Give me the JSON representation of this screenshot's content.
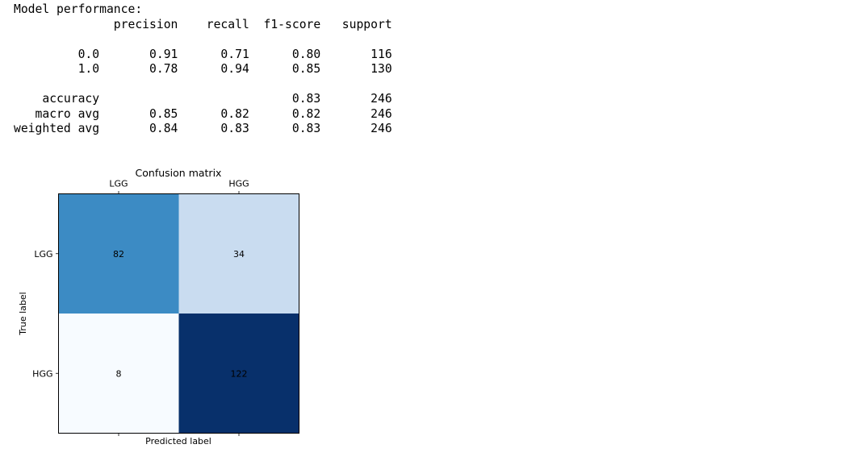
{
  "report": {
    "lines": [
      "Model performance:",
      "              precision    recall  f1-score   support",
      "",
      "         0.0       0.91      0.71      0.80       116",
      "         1.0       0.78      0.94      0.85       130",
      "",
      "    accuracy                           0.83       246",
      "   macro avg       0.85      0.82      0.82       246",
      "weighted avg       0.84      0.83      0.83       246"
    ]
  },
  "chart_data": {
    "type": "heatmap",
    "title": "Confusion matrix",
    "xlabel": "Predicted label",
    "ylabel": "True label",
    "x_categories": [
      "LGG",
      "HGG"
    ],
    "y_categories": [
      "LGG",
      "HGG"
    ],
    "values": [
      [
        82,
        34
      ],
      [
        8,
        122
      ]
    ],
    "colormap": "Blues",
    "colors": {
      "cells": [
        [
          "#3c8bc4",
          "#c9dcf0"
        ],
        [
          "#f7fbff",
          "#08306b"
        ]
      ],
      "cell_text": "#000000",
      "axis": "#000000"
    },
    "x_ticks_position": "top",
    "grid": false
  }
}
